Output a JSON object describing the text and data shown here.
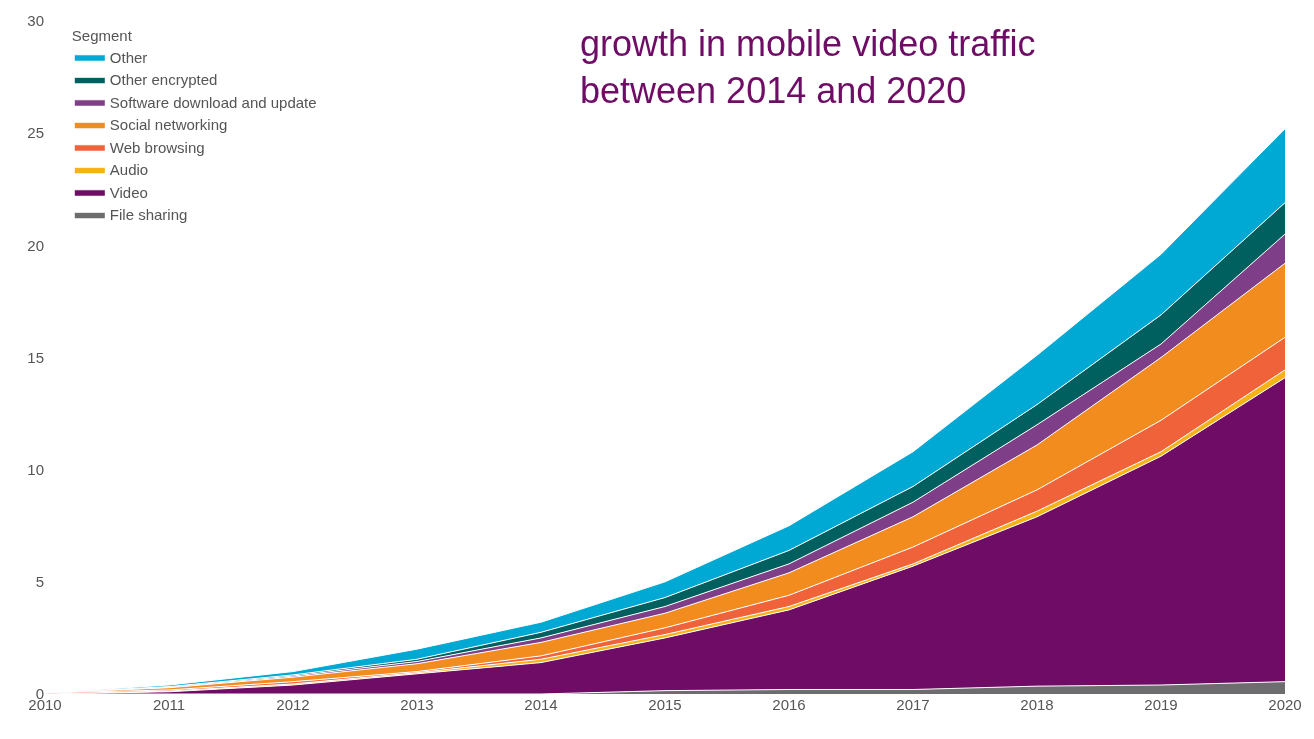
{
  "chart_data": {
    "type": "area",
    "stacked": true,
    "legend_title": "Segment",
    "legend": "top left",
    "marker": "none",
    "annotations": [
      "growth in mobile video traffic\nbetween 2014 and 2020"
    ],
    "x": [
      2010,
      2011,
      2012,
      2013,
      2014,
      2015,
      2016,
      2017,
      2018,
      2019,
      2020
    ],
    "xlim": [
      2010,
      2020
    ],
    "xticks": [
      2010,
      2011,
      2012,
      2013,
      2014,
      2015,
      2016,
      2017,
      2018,
      2019,
      2020
    ],
    "ylim": [
      0,
      30
    ],
    "yticks": [
      0,
      5,
      10,
      15,
      20,
      25,
      30
    ],
    "series": [
      {
        "name": "File sharing",
        "color": "#6d6d70",
        "values": [
          0,
          0,
          0,
          0,
          0,
          0.15,
          0.2,
          0.2,
          0.35,
          0.4,
          0.55
        ]
      },
      {
        "name": "Video",
        "color": "#6e0c66",
        "values": [
          0,
          0.1,
          0.4,
          0.9,
          1.4,
          2.35,
          3.55,
          5.5,
          7.55,
          10.2,
          13.55
        ]
      },
      {
        "name": "Audio",
        "color": "#f5b316",
        "values": [
          0,
          0.03,
          0.05,
          0.05,
          0.15,
          0.15,
          0.15,
          0.1,
          0.25,
          0.2,
          0.35
        ]
      },
      {
        "name": "Web browsing",
        "color": "#f0623a",
        "values": [
          0.05,
          0.05,
          0.1,
          0.05,
          0.15,
          0.3,
          0.5,
          0.75,
          0.95,
          1.4,
          1.45
        ]
      },
      {
        "name": "Social networking",
        "color": "#f28c1f",
        "values": [
          0,
          0.1,
          0.2,
          0.35,
          0.6,
          0.65,
          1.0,
          1.35,
          2.0,
          2.8,
          3.3
        ]
      },
      {
        "name": "Software download and update",
        "color": "#7f3f88",
        "values": [
          0,
          0.02,
          0.05,
          0.1,
          0.2,
          0.3,
          0.4,
          0.65,
          0.9,
          0.6,
          1.3
        ]
      },
      {
        "name": "Other encrypted",
        "color": "#006060",
        "values": [
          0,
          0.03,
          0.05,
          0.1,
          0.25,
          0.4,
          0.6,
          0.7,
          0.9,
          1.3,
          1.4
        ]
      },
      {
        "name": "Other",
        "color": "#00a9d4",
        "values": [
          0,
          0.07,
          0.15,
          0.45,
          0.45,
          0.7,
          1.1,
          1.55,
          2.2,
          2.7,
          3.3
        ]
      }
    ]
  }
}
